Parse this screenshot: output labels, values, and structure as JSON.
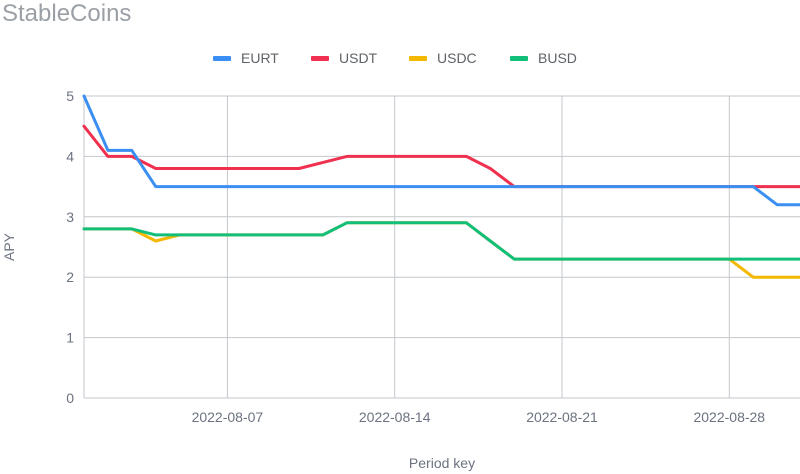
{
  "title": "StableCoins",
  "chart_data": {
    "type": "line",
    "xlabel": "Period key",
    "ylabel": "APY",
    "ylim": [
      0,
      5
    ],
    "yticks": [
      0,
      1,
      2,
      3,
      4,
      5
    ],
    "xticks": [
      "2022-08-07",
      "2022-08-14",
      "2022-08-21",
      "2022-08-28"
    ],
    "x": [
      "2022-08-01",
      "2022-08-02",
      "2022-08-03",
      "2022-08-04",
      "2022-08-05",
      "2022-08-06",
      "2022-08-07",
      "2022-08-08",
      "2022-08-09",
      "2022-08-10",
      "2022-08-11",
      "2022-08-12",
      "2022-08-13",
      "2022-08-14",
      "2022-08-15",
      "2022-08-16",
      "2022-08-17",
      "2022-08-18",
      "2022-08-19",
      "2022-08-20",
      "2022-08-21",
      "2022-08-22",
      "2022-08-23",
      "2022-08-24",
      "2022-08-25",
      "2022-08-26",
      "2022-08-27",
      "2022-08-28",
      "2022-08-29",
      "2022-08-30",
      "2022-08-31"
    ],
    "grid": true,
    "legend_position": "top",
    "series": [
      {
        "name": "EURT",
        "color": "#3b8ff2",
        "values": [
          5.0,
          4.1,
          4.1,
          3.5,
          3.5,
          3.5,
          3.5,
          3.5,
          3.5,
          3.5,
          3.5,
          3.5,
          3.5,
          3.5,
          3.5,
          3.5,
          3.5,
          3.5,
          3.5,
          3.5,
          3.5,
          3.5,
          3.5,
          3.5,
          3.5,
          3.5,
          3.5,
          3.5,
          3.5,
          3.2,
          3.2
        ]
      },
      {
        "name": "USDT",
        "color": "#f0304f",
        "values": [
          4.5,
          4.0,
          4.0,
          3.8,
          3.8,
          3.8,
          3.8,
          3.8,
          3.8,
          3.8,
          3.9,
          4.0,
          4.0,
          4.0,
          4.0,
          4.0,
          4.0,
          3.8,
          3.5,
          3.5,
          3.5,
          3.5,
          3.5,
          3.5,
          3.5,
          3.5,
          3.5,
          3.5,
          3.5,
          3.5,
          3.5
        ]
      },
      {
        "name": "USDC",
        "color": "#f5b800",
        "values": [
          2.8,
          2.8,
          2.8,
          2.6,
          2.7,
          2.7,
          2.7,
          2.7,
          2.7,
          2.7,
          2.7,
          2.9,
          2.9,
          2.9,
          2.9,
          2.9,
          2.9,
          2.6,
          2.3,
          2.3,
          2.3,
          2.3,
          2.3,
          2.3,
          2.3,
          2.3,
          2.3,
          2.3,
          2.0,
          2.0,
          2.0
        ]
      },
      {
        "name": "BUSD",
        "color": "#12bf7a",
        "values": [
          2.8,
          2.8,
          2.8,
          2.7,
          2.7,
          2.7,
          2.7,
          2.7,
          2.7,
          2.7,
          2.7,
          2.9,
          2.9,
          2.9,
          2.9,
          2.9,
          2.9,
          2.6,
          2.3,
          2.3,
          2.3,
          2.3,
          2.3,
          2.3,
          2.3,
          2.3,
          2.3,
          2.3,
          2.3,
          2.3,
          2.3
        ]
      }
    ]
  }
}
